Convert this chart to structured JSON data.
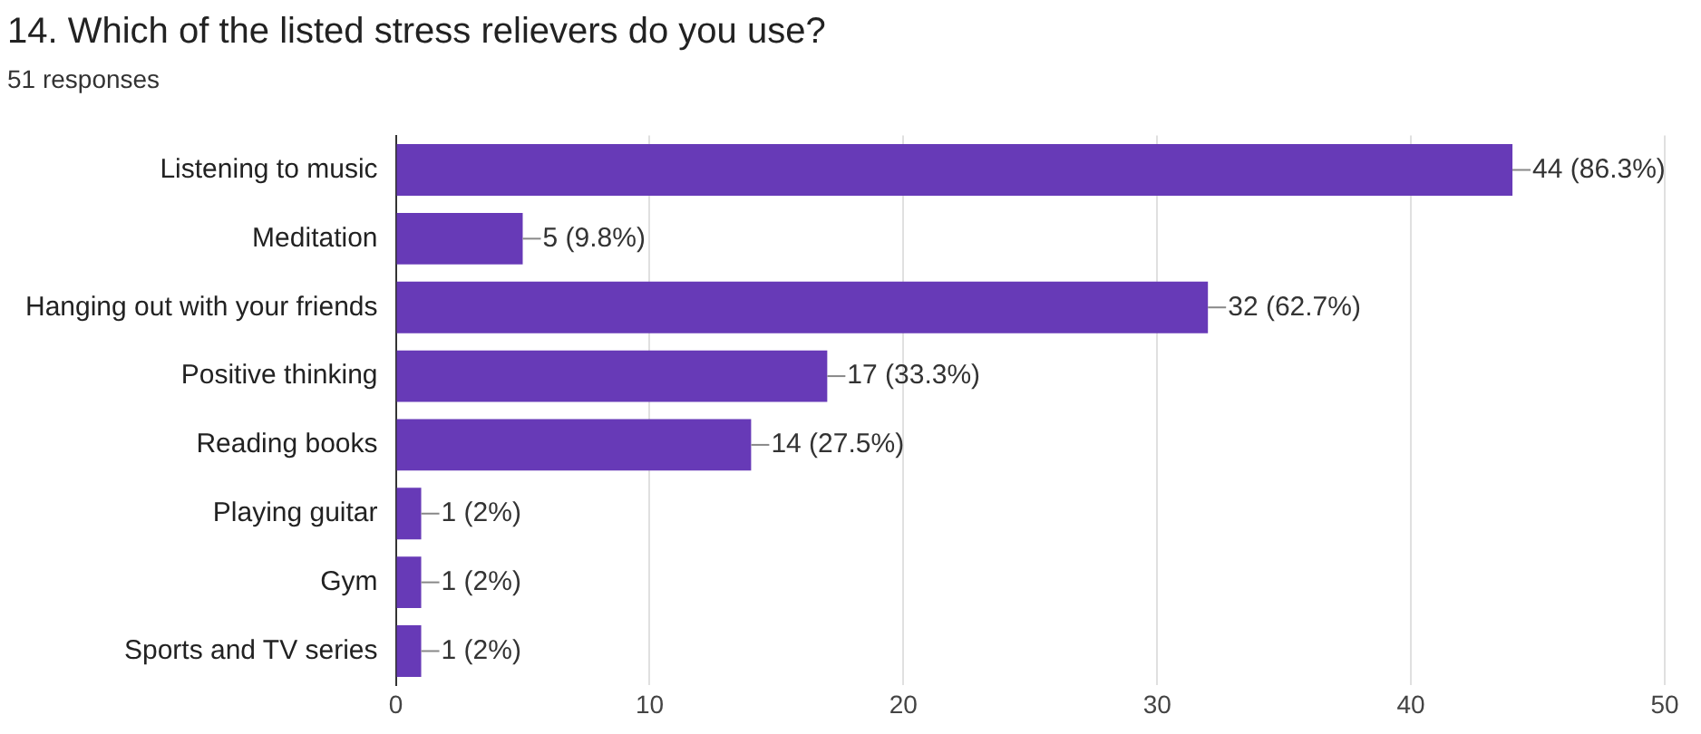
{
  "chart_data": {
    "type": "bar",
    "orientation": "horizontal",
    "title": "14. Which of the listed stress relievers do you use?",
    "subtitle": "51 responses",
    "categories": [
      "Listening to music",
      "Meditation",
      "Hanging out with your friends",
      "Positive thinking",
      "Reading books",
      "Playing guitar",
      "Gym",
      "Sports and TV series"
    ],
    "values": [
      44,
      5,
      32,
      17,
      14,
      1,
      1,
      1
    ],
    "value_labels": [
      "44 (86.3%)",
      "5 (9.8%)",
      "32 (62.7%)",
      "17 (33.3%)",
      "14 (27.5%)",
      "1 (2%)",
      "1 (2%)",
      "1 (2%)"
    ],
    "color": "#673ab7",
    "xlim": [
      0,
      50
    ],
    "xticks": [
      0,
      10,
      20,
      30,
      40,
      50
    ],
    "grid": "x"
  }
}
